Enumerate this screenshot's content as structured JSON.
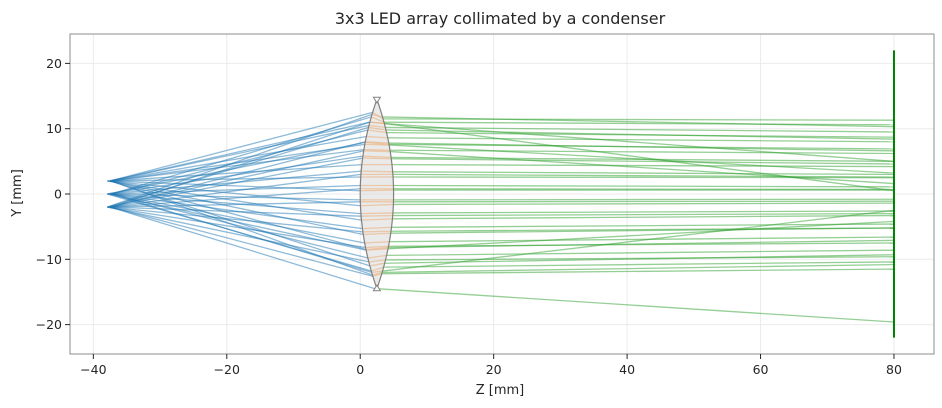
{
  "chart_data": {
    "type": "line",
    "title": "3x3 LED array collimated by a condenser",
    "xlabel": "Z [mm]",
    "ylabel": "Y [mm]",
    "xlim": [
      -43.5,
      86
    ],
    "ylim": [
      -24.5,
      24.5
    ],
    "xticks": [
      -40,
      -20,
      0,
      20,
      40,
      60,
      80
    ],
    "xtick_labels": [
      "−40",
      "−20",
      "0",
      "20",
      "40",
      "60",
      "80"
    ],
    "yticks": [
      -20,
      -10,
      0,
      10,
      20
    ],
    "ytick_labels": [
      "−20",
      "−10",
      "0",
      "10",
      "20"
    ],
    "grid": true,
    "colors": {
      "incident_rays": "#1f77b4",
      "internal_rays": "#ff7f0e",
      "exit_rays": "#2ca02c",
      "lens_fill": "#d9d9d9",
      "lens_edge": "#808080",
      "detector": "#008000"
    },
    "led_sources": [
      {
        "z": -37.5,
        "y": 2
      },
      {
        "z": -37.5,
        "y": 0
      },
      {
        "z": -37.5,
        "y": -2
      },
      {
        "z": -37.3,
        "y": 2
      },
      {
        "z": -37.3,
        "y": 0
      },
      {
        "z": -37.3,
        "y": -2
      },
      {
        "z": -37.9,
        "y": 2
      },
      {
        "z": -37.9,
        "y": 0
      },
      {
        "z": -37.9,
        "y": -2
      }
    ],
    "lens": {
      "z_center": 2.5,
      "half_thickness": 2.5,
      "aperture_half_height": 14.5
    },
    "detector": {
      "z": 80,
      "y_range": [
        -22,
        22
      ]
    },
    "rays": [
      {
        "y0": 2,
        "y_front": 12.5,
        "y_exit": 11.5,
        "y_det": 11.3
      },
      {
        "y0": 2,
        "y_front": 10.5,
        "y_exit": 10.2,
        "y_det": 9.5
      },
      {
        "y0": 2,
        "y_front": 8.8,
        "y_exit": 8.6,
        "y_det": 8.0
      },
      {
        "y0": 2,
        "y_front": 6.8,
        "y_exit": 6.7,
        "y_det": 6.2
      },
      {
        "y0": 2,
        "y_front": 4.5,
        "y_exit": 4.5,
        "y_det": 4.2
      },
      {
        "y0": 2,
        "y_front": 2.6,
        "y_exit": 2.6,
        "y_det": 2.5
      },
      {
        "y0": 2,
        "y_front": 0.5,
        "y_exit": 0.6,
        "y_det": 0.6
      },
      {
        "y0": 2,
        "y_front": -1.8,
        "y_exit": -1.6,
        "y_det": -1.4
      },
      {
        "y0": 2,
        "y_front": -4.0,
        "y_exit": -3.8,
        "y_det": -3.3
      },
      {
        "y0": 2,
        "y_front": -6.2,
        "y_exit": -6.0,
        "y_det": -5.2
      },
      {
        "y0": 2,
        "y_front": -8.5,
        "y_exit": -8.2,
        "y_det": -7.1
      },
      {
        "y0": 2,
        "y_front": -11.0,
        "y_exit": -10.6,
        "y_det": -9.3
      },
      {
        "y0": 2,
        "y_front": -12.4,
        "y_exit": -12.0,
        "y_det": -10.8
      },
      {
        "y0": 0,
        "y_front": 11.8,
        "y_exit": 11.0,
        "y_det": 10.6
      },
      {
        "y0": 0,
        "y_front": 9.8,
        "y_exit": 9.4,
        "y_det": 8.7
      },
      {
        "y0": 0,
        "y_front": 7.9,
        "y_exit": 7.6,
        "y_det": 6.9
      },
      {
        "y0": 0,
        "y_front": 5.8,
        "y_exit": 5.6,
        "y_det": 5.0
      },
      {
        "y0": 0,
        "y_front": 3.5,
        "y_exit": 3.4,
        "y_det": 3.0
      },
      {
        "y0": 0,
        "y_front": 1.3,
        "y_exit": 1.3,
        "y_det": 1.1
      },
      {
        "y0": 0,
        "y_front": -0.9,
        "y_exit": -0.9,
        "y_det": -0.8
      },
      {
        "y0": 0,
        "y_front": -3.0,
        "y_exit": -2.9,
        "y_det": -2.6
      },
      {
        "y0": 0,
        "y_front": -5.3,
        "y_exit": -5.1,
        "y_det": -4.6
      },
      {
        "y0": 0,
        "y_front": -7.5,
        "y_exit": -7.3,
        "y_det": -6.6
      },
      {
        "y0": 0,
        "y_front": -9.8,
        "y_exit": -9.4,
        "y_det": -8.6
      },
      {
        "y0": 0,
        "y_front": -11.8,
        "y_exit": -11.2,
        "y_det": -10.4
      },
      {
        "y0": -2,
        "y_front": 12.2,
        "y_exit": 11.8,
        "y_det": 10.3
      },
      {
        "y0": -2,
        "y_front": 10.2,
        "y_exit": 9.8,
        "y_det": 8.4
      },
      {
        "y0": -2,
        "y_front": 8.0,
        "y_exit": 7.8,
        "y_det": 6.6
      },
      {
        "y0": -2,
        "y_front": 5.5,
        "y_exit": 5.4,
        "y_det": 4.6
      },
      {
        "y0": -2,
        "y_front": 3.0,
        "y_exit": 3.0,
        "y_det": 2.6
      },
      {
        "y0": -2,
        "y_front": 0.8,
        "y_exit": 0.8,
        "y_det": 0.7
      },
      {
        "y0": -2,
        "y_front": -1.2,
        "y_exit": -1.2,
        "y_det": -1.1
      },
      {
        "y0": -2,
        "y_front": -3.4,
        "y_exit": -3.3,
        "y_det": -3.0
      },
      {
        "y0": -2,
        "y_front": -5.8,
        "y_exit": -5.7,
        "y_det": -5.2
      },
      {
        "y0": -2,
        "y_front": -8.2,
        "y_exit": -8.0,
        "y_det": -7.5
      },
      {
        "y0": -2,
        "y_front": -10.4,
        "y_exit": -10.1,
        "y_det": -9.6
      },
      {
        "y0": -2,
        "y_front": -12.6,
        "y_exit": -12.2,
        "y_det": -11.5
      },
      {
        "y0": -2,
        "y_front": -14.6,
        "y_exit": -14.5,
        "y_det": -19.6
      },
      {
        "y0": 2,
        "y_front": 11.0,
        "y_exit": 10.8,
        "y_det": 5.0
      },
      {
        "y0": 0,
        "y_front": -12.0,
        "y_exit": -11.8,
        "y_det": -2.5
      },
      {
        "y0": -2,
        "y_front": 11.0,
        "y_exit": 10.8,
        "y_det": 0.5
      },
      {
        "y0": 2,
        "y_front": 7.6,
        "y_exit": 7.5,
        "y_det": 3.2
      },
      {
        "y0": 0,
        "y_front": -8.6,
        "y_exit": -8.4,
        "y_det": -4.2
      },
      {
        "y0": -2,
        "y_front": 6.6,
        "y_exit": 6.5,
        "y_det": 1.6
      }
    ]
  }
}
